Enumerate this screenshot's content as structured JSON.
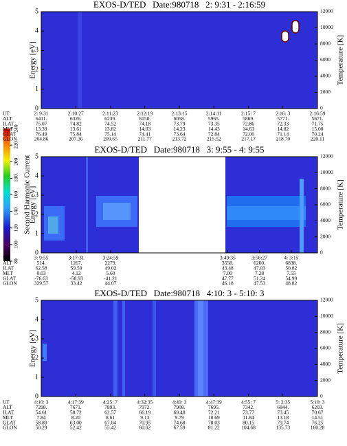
{
  "chart_data": [
    {
      "type": "spectrogram",
      "title": "EXOS-D/TED   Date:980718   2: 9:31 - 2:16:59",
      "y_label": "Energy [eV]",
      "y2_label": "Temperature [K]",
      "ylim": [
        0,
        5
      ],
      "yticks": [
        0,
        1,
        2,
        3,
        4,
        5
      ],
      "y2lim": [
        0,
        12000
      ],
      "y2ticks": [
        0,
        2000,
        4000,
        6000,
        8000,
        10000,
        12000
      ],
      "row_labels": [
        "UT",
        "ALT",
        "ILAT",
        "MLT",
        "GLAT",
        "GLON"
      ],
      "rows": [
        [
          "2: 9:31",
          "2:10:27",
          "2:11:23",
          "2:12:19",
          "2:13:15",
          "2:14:11",
          "2:15: 7",
          "2:16: 3",
          "2:16:59"
        ],
        [
          "6411.",
          "6326.",
          "6239.",
          "6150.",
          "6058.",
          "5965.",
          "5869.",
          "5771.",
          "5671."
        ],
        [
          "75.07",
          "74.82",
          "74.52",
          "74.18",
          "73.79",
          "73.35",
          "72.86",
          "72.33",
          "71.75"
        ],
        [
          "13.39",
          "13.61",
          "13.82",
          "14.03",
          "14.23",
          "14.43",
          "14.63",
          "14.82",
          "15.00"
        ],
        [
          "76.49",
          "75.84",
          "75.14",
          "74.41",
          "73.64",
          "72.84",
          "72.00",
          "71.14",
          "70.24"
        ],
        [
          "204.86",
          "207.36",
          "209.65",
          "211.77",
          "213.72",
          "215.52",
          "217.17",
          "218.70",
          "220.11"
        ]
      ]
    },
    {
      "type": "spectrogram",
      "title": "EXOS-D/TED   Date:980718   3: 9:55 - 4: 9:55",
      "y_label": "Energy [eV]",
      "y2_label": "Temperature [K]",
      "ylim": [
        0,
        5
      ],
      "yticks": [
        0,
        1,
        2,
        3,
        4,
        5
      ],
      "y2lim": [
        0,
        12000
      ],
      "y2ticks": [
        0,
        2000,
        4000,
        6000,
        8000,
        10000,
        12000
      ],
      "row_labels": [
        "UT",
        "ALT",
        "ILAT",
        "MLT",
        "GLAT",
        "GLON"
      ],
      "rows": [
        [
          "3: 9:55",
          "3:17:31",
          "3:24:59",
          "3:49:35",
          "3:56:27",
          "4: 3:15"
        ],
        [
          "514.",
          "1267.",
          "2279.",
          "3558.",
          "6260.",
          "6838."
        ],
        [
          "62.58",
          "59.59",
          "49.02",
          "43.48",
          "47.03",
          "50.82"
        ],
        [
          "0.03",
          "4.12",
          "5.60",
          "7.00",
          "7.28",
          "7.55"
        ],
        [
          "-76.63",
          "-58.93",
          "-41.21",
          "47.77",
          "51.24",
          "54.99"
        ],
        [
          "329.57",
          "33.42",
          "44.07",
          "46.18",
          "47.53",
          "48.82"
        ]
      ]
    },
    {
      "type": "spectrogram",
      "title": "EXOS-D/TED   Date:980718   4:10: 3 - 5:10: 3",
      "y_label": "Energy [eV]",
      "y2_label": "Temperature [K]",
      "ylim": [
        0,
        5
      ],
      "yticks": [
        0,
        1,
        2,
        3,
        4,
        5
      ],
      "y2lim": [
        0,
        12000
      ],
      "y2ticks": [
        0,
        2000,
        4000,
        6000,
        8000,
        10000,
        12000
      ],
      "row_labels": [
        "UT",
        "ALT",
        "ILAT",
        "MLT",
        "GLAT",
        "GLON"
      ],
      "rows": [
        [
          "4:10: 3",
          "4:17:39",
          "4:25: 7",
          "4:32:35",
          "4:40: 3",
          "4:47:39",
          "4:55: 7",
          "5: 2:35",
          "5:10: 3"
        ],
        [
          "7298.",
          "7671.",
          "7893.",
          "7972.",
          "7908.",
          "7695.",
          "7342.",
          "6844.",
          "6203."
        ],
        [
          "54.61",
          "58.72",
          "62.57",
          "66.19",
          "69.48",
          "72.21",
          "73.77",
          "73.45",
          "70.67"
        ],
        [
          "7.84",
          "8.20",
          "8.61",
          "9.13",
          "9.79",
          "10.69",
          "11.84",
          "13.18",
          "14.51"
        ],
        [
          "58.80",
          "63.00",
          "67.04",
          "70.95",
          "74.68",
          "78.03",
          "80.15",
          "79.74",
          "76.25"
        ],
        [
          "50.29",
          "52.42",
          "55.42",
          "60.02",
          "67.59",
          "81.22",
          "104.68",
          "135.73",
          "160.28"
        ]
      ]
    }
  ],
  "colorbar": {
    "label": "Second Harmonic Current",
    "lim": [
      80,
      240
    ],
    "ticks": [
      80,
      100,
      120,
      140,
      160,
      180,
      200,
      220,
      240
    ]
  }
}
